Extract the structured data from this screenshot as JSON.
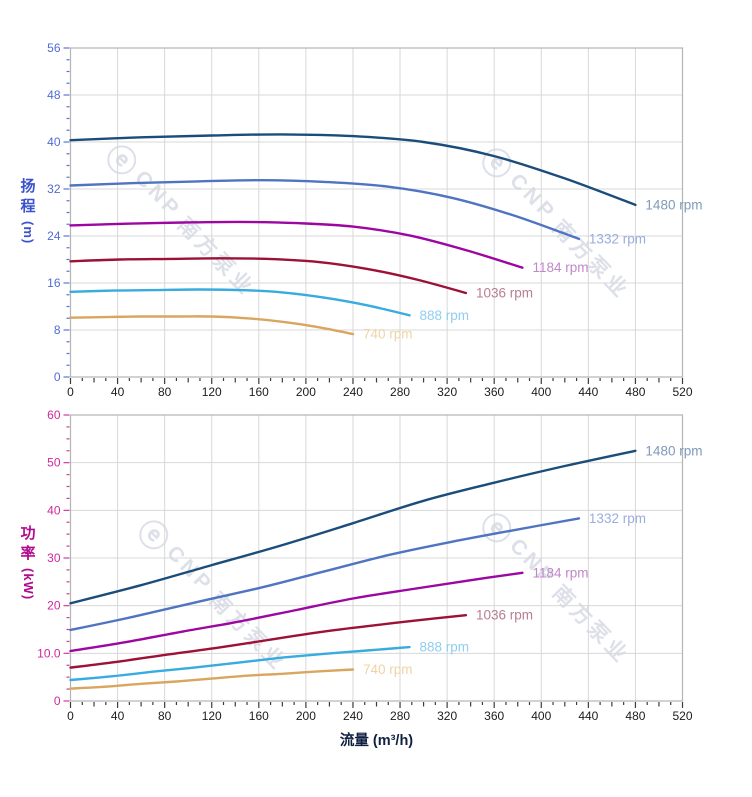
{
  "watermark": {
    "logo": "ⓔ",
    "brand": "CNP",
    "name": "南方泵业"
  },
  "chart_data": [
    {
      "type": "line",
      "title": "",
      "xlabel": "",
      "ylabel": "扬程 (m)",
      "ylabel_chars": [
        "扬",
        "程"
      ],
      "ylabel_unit": "(m)",
      "xlim": [
        0,
        520
      ],
      "ylim": [
        0,
        56
      ],
      "grid": "on",
      "legend": "end-of-line labels",
      "x_tick_step": 40,
      "x_minor_step": 10,
      "y_minor_step": 2,
      "x_tick_labels": [
        "0",
        "40",
        "80",
        "120",
        "160",
        "200",
        "240",
        "280",
        "320",
        "360",
        "400",
        "440",
        "480",
        "520"
      ],
      "y_tick_labels": [
        "0",
        "8",
        "16",
        "24",
        "32",
        "40",
        "48",
        "56"
      ],
      "axis_text_color": "#4f6cd6",
      "axis_tick_color": "#5b74d8",
      "x_text_color": "#1c1c1c",
      "series": [
        {
          "name": "1480 rpm",
          "color": "#1b4d7b",
          "label_color": "#7e9aba",
          "points": [
            [
              0,
              40.3
            ],
            [
              60,
              40.8
            ],
            [
              120,
              41.1
            ],
            [
              180,
              41.3
            ],
            [
              240,
              41.0
            ],
            [
              300,
              40.0
            ],
            [
              360,
              37.6
            ],
            [
              420,
              33.8
            ],
            [
              480,
              29.3
            ]
          ]
        },
        {
          "name": "1332 rpm",
          "color": "#4f74c2",
          "label_color": "#9badde",
          "points": [
            [
              0,
              32.6
            ],
            [
              54,
              33.0
            ],
            [
              108,
              33.3
            ],
            [
              162,
              33.5
            ],
            [
              216,
              33.2
            ],
            [
              270,
              32.4
            ],
            [
              324,
              30.5
            ],
            [
              378,
              27.4
            ],
            [
              432,
              23.5
            ]
          ]
        },
        {
          "name": "1184 rpm",
          "color": "#9d07a1",
          "label_color": "#c287c9",
          "points": [
            [
              0,
              25.8
            ],
            [
              48,
              26.1
            ],
            [
              96,
              26.3
            ],
            [
              144,
              26.4
            ],
            [
              192,
              26.2
            ],
            [
              240,
              25.6
            ],
            [
              288,
              24.1
            ],
            [
              336,
              21.6
            ],
            [
              384,
              18.6
            ]
          ]
        },
        {
          "name": "1036 rpm",
          "color": "#9c1135",
          "label_color": "#b77d93",
          "points": [
            [
              0,
              19.7
            ],
            [
              42,
              20.0
            ],
            [
              84,
              20.1
            ],
            [
              126,
              20.2
            ],
            [
              168,
              20.1
            ],
            [
              210,
              19.6
            ],
            [
              252,
              18.4
            ],
            [
              294,
              16.6
            ],
            [
              336,
              14.3
            ]
          ]
        },
        {
          "name": "888 rpm",
          "color": "#38abdf",
          "label_color": "#8fceef",
          "points": [
            [
              0,
              14.5
            ],
            [
              36,
              14.7
            ],
            [
              72,
              14.8
            ],
            [
              108,
              14.9
            ],
            [
              144,
              14.8
            ],
            [
              180,
              14.4
            ],
            [
              216,
              13.5
            ],
            [
              252,
              12.2
            ],
            [
              288,
              10.5
            ]
          ]
        },
        {
          "name": "740 rpm",
          "color": "#d9a55f",
          "label_color": "#eed4a5",
          "points": [
            [
              0,
              10.1
            ],
            [
              30,
              10.2
            ],
            [
              60,
              10.3
            ],
            [
              90,
              10.3
            ],
            [
              120,
              10.3
            ],
            [
              150,
              10.0
            ],
            [
              180,
              9.4
            ],
            [
              210,
              8.5
            ],
            [
              240,
              7.3
            ]
          ]
        }
      ]
    },
    {
      "type": "line",
      "title": "",
      "xlabel": "流量 (m³/h)",
      "ylabel": "功率 (kW)",
      "ylabel_chars": [
        "功",
        "率"
      ],
      "ylabel_unit": "(kW)",
      "xlim": [
        0,
        520
      ],
      "ylim": [
        0,
        60
      ],
      "grid": "on",
      "legend": "end-of-line labels",
      "x_tick_step": 40,
      "x_minor_step": 10,
      "y_minor_step": 2.5,
      "x_tick_labels": [
        "0",
        "40",
        "80",
        "120",
        "160",
        "200",
        "240",
        "280",
        "320",
        "360",
        "400",
        "440",
        "480",
        "520"
      ],
      "y_tick_labels": [
        "0",
        "10.0",
        "20",
        "30",
        "40",
        "50",
        "60"
      ],
      "axis_text_color": "#d1289b",
      "axis_tick_color": "#d23a9f",
      "x_text_color": "#1c1c1c",
      "series": [
        {
          "name": "1480 rpm",
          "color": "#1b4d7b",
          "label_color": "#7e9aba",
          "points": [
            [
              0,
              20.5
            ],
            [
              60,
              24.3
            ],
            [
              120,
              28.5
            ],
            [
              180,
              32.7
            ],
            [
              240,
              37.3
            ],
            [
              300,
              42.0
            ],
            [
              360,
              45.8
            ],
            [
              420,
              49.3
            ],
            [
              480,
              52.5
            ]
          ]
        },
        {
          "name": "1332 rpm",
          "color": "#4f74c2",
          "label_color": "#9badde",
          "points": [
            [
              0,
              14.9
            ],
            [
              54,
              17.7
            ],
            [
              108,
              20.8
            ],
            [
              162,
              23.8
            ],
            [
              216,
              27.2
            ],
            [
              270,
              30.6
            ],
            [
              324,
              33.4
            ],
            [
              378,
              35.9
            ],
            [
              432,
              38.3
            ]
          ]
        },
        {
          "name": "1184 rpm",
          "color": "#9d07a1",
          "label_color": "#c287c9",
          "points": [
            [
              0,
              10.5
            ],
            [
              48,
              12.4
            ],
            [
              96,
              14.6
            ],
            [
              144,
              16.7
            ],
            [
              192,
              19.1
            ],
            [
              240,
              21.5
            ],
            [
              288,
              23.4
            ],
            [
              336,
              25.2
            ],
            [
              384,
              26.9
            ]
          ]
        },
        {
          "name": "1036 rpm",
          "color": "#9c1135",
          "label_color": "#b77d93",
          "points": [
            [
              0,
              7.0
            ],
            [
              42,
              8.3
            ],
            [
              84,
              9.8
            ],
            [
              126,
              11.2
            ],
            [
              168,
              12.8
            ],
            [
              210,
              14.4
            ],
            [
              252,
              15.7
            ],
            [
              294,
              16.9
            ],
            [
              336,
              18.0
            ]
          ]
        },
        {
          "name": "888 rpm",
          "color": "#38abdf",
          "label_color": "#8fceef",
          "points": [
            [
              0,
              4.4
            ],
            [
              36,
              5.2
            ],
            [
              72,
              6.2
            ],
            [
              108,
              7.1
            ],
            [
              144,
              8.1
            ],
            [
              180,
              9.1
            ],
            [
              216,
              9.9
            ],
            [
              252,
              10.6
            ],
            [
              288,
              11.3
            ]
          ]
        },
        {
          "name": "740 rpm",
          "color": "#d9a55f",
          "label_color": "#eed4a5",
          "points": [
            [
              0,
              2.6
            ],
            [
              30,
              3.0
            ],
            [
              60,
              3.6
            ],
            [
              90,
              4.1
            ],
            [
              120,
              4.7
            ],
            [
              150,
              5.3
            ],
            [
              180,
              5.7
            ],
            [
              210,
              6.2
            ],
            [
              240,
              6.6
            ]
          ]
        }
      ]
    }
  ]
}
